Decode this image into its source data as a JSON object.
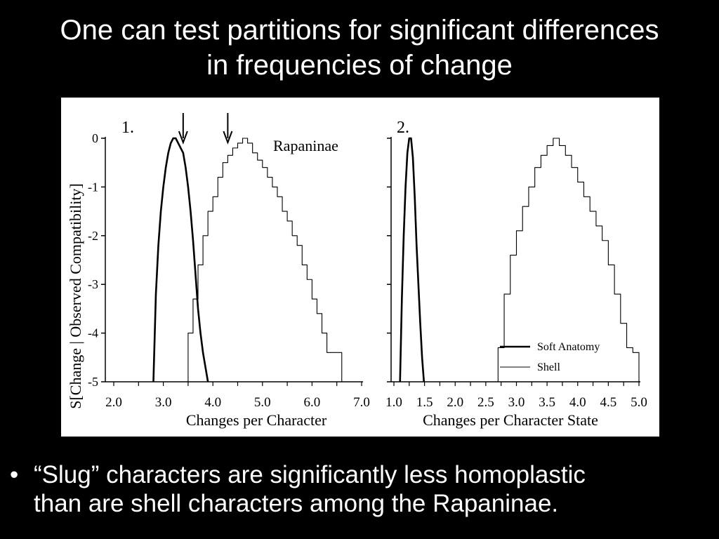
{
  "slide": {
    "title_line1": "One can test partitions for significant differences",
    "title_line2": "in frequencies of change",
    "bullet_symbol": "•",
    "bullet_line1": "“Slug” characters are significantly less homoplastic",
    "bullet_line2": "than are shell characters among the Rapaninae."
  },
  "colors": {
    "background": "#000000",
    "text": "#ffffff",
    "figure_bg": "#ffffff",
    "ink": "#000000"
  },
  "chart_data": [
    {
      "type": "line",
      "panel_label": "1.",
      "annotation": "Rapaninae",
      "ylabel": "S[Change | Observed Compatibility]",
      "xlabel": "Changes per Character",
      "xlim": [
        2.0,
        7.0
      ],
      "ylim": [
        -5,
        0
      ],
      "xticks": [
        2.0,
        3.0,
        4.0,
        5.0,
        6.0,
        7.0
      ],
      "xtick_labels": [
        "2.0",
        "3.0",
        "4.0",
        "5.0",
        "6.0",
        "7.0"
      ],
      "yticks": [
        0,
        -1,
        -2,
        -3,
        -4,
        -5
      ],
      "ytick_labels": [
        "0",
        "-1",
        "-2",
        "-3",
        "-4",
        "-5"
      ],
      "arrows": [
        3.4,
        4.3
      ],
      "series": [
        {
          "name": "Soft Anatomy",
          "style": "thick",
          "x": [
            2.8,
            2.85,
            2.9,
            2.95,
            3.0,
            3.05,
            3.1,
            3.15,
            3.2,
            3.25,
            3.3,
            3.35,
            3.4,
            3.45,
            3.5,
            3.55,
            3.6,
            3.65,
            3.7,
            3.75,
            3.8,
            3.85,
            3.9
          ],
          "y": [
            -5.0,
            -3.2,
            -2.2,
            -1.5,
            -1.0,
            -0.6,
            -0.3,
            -0.1,
            0.0,
            0.0,
            -0.1,
            -0.2,
            -0.3,
            -0.6,
            -1.0,
            -1.5,
            -2.1,
            -2.8,
            -3.5,
            -4.0,
            -4.4,
            -4.7,
            -5.0
          ]
        },
        {
          "name": "Shell",
          "style": "thin",
          "x": [
            3.4,
            3.5,
            3.6,
            3.7,
            3.8,
            3.9,
            4.0,
            4.1,
            4.2,
            4.3,
            4.4,
            4.5,
            4.6,
            4.7,
            4.8,
            4.9,
            5.0,
            5.1,
            5.2,
            5.3,
            5.4,
            5.5,
            5.6,
            5.7,
            5.8,
            5.9,
            6.0,
            6.1,
            6.2,
            6.3,
            6.4,
            6.5,
            6.6
          ],
          "y": [
            -5.0,
            -4.0,
            -3.3,
            -2.6,
            -2.0,
            -1.5,
            -1.2,
            -0.8,
            -0.5,
            -0.35,
            -0.2,
            -0.1,
            0.0,
            -0.1,
            -0.3,
            -0.45,
            -0.6,
            -0.8,
            -1.0,
            -1.2,
            -1.5,
            -1.7,
            -2.0,
            -2.2,
            -2.6,
            -2.9,
            -3.3,
            -3.6,
            -4.0,
            -4.4,
            -4.4,
            -4.4,
            -5.0
          ]
        }
      ]
    },
    {
      "type": "line",
      "panel_label": "2.",
      "xlabel": "Changes per Character State",
      "xlim": [
        1.0,
        5.0
      ],
      "ylim": [
        -5,
        0
      ],
      "xticks": [
        1.0,
        1.5,
        2.0,
        2.5,
        3.0,
        3.5,
        4.0,
        4.5,
        5.0
      ],
      "xtick_labels": [
        "1.0",
        "1.5",
        "2.0",
        "2.5",
        "3.0",
        "3.5",
        "4.0",
        "4.5",
        "5.0"
      ],
      "yticks": [
        0,
        -1,
        -2,
        -3,
        -4,
        -5
      ],
      "legend": {
        "position": "bottom-right",
        "entries": [
          "Soft Anatomy",
          "Shell"
        ]
      },
      "series": [
        {
          "name": "Soft Anatomy",
          "style": "thick",
          "x": [
            1.1,
            1.13,
            1.16,
            1.19,
            1.22,
            1.25,
            1.28,
            1.31,
            1.34,
            1.37,
            1.4,
            1.43,
            1.46,
            1.49
          ],
          "y": [
            -5.0,
            -3.3,
            -2.0,
            -1.0,
            -0.3,
            0.0,
            0.0,
            -0.4,
            -1.2,
            -2.2,
            -3.0,
            -3.8,
            -4.5,
            -5.0
          ]
        },
        {
          "name": "Shell",
          "style": "thin",
          "x": [
            2.6,
            2.7,
            2.8,
            2.9,
            3.0,
            3.1,
            3.2,
            3.3,
            3.4,
            3.5,
            3.6,
            3.7,
            3.8,
            3.9,
            4.0,
            4.1,
            4.2,
            4.3,
            4.4,
            4.5,
            4.6,
            4.7,
            4.8,
            4.9,
            5.0
          ],
          "y": [
            -5.0,
            -4.3,
            -3.2,
            -2.4,
            -1.9,
            -1.4,
            -1.0,
            -0.6,
            -0.35,
            -0.15,
            0.0,
            -0.15,
            -0.35,
            -0.6,
            -0.9,
            -1.2,
            -1.5,
            -1.8,
            -2.1,
            -2.6,
            -3.2,
            -3.8,
            -4.3,
            -4.4,
            -5.0
          ]
        }
      ]
    }
  ]
}
